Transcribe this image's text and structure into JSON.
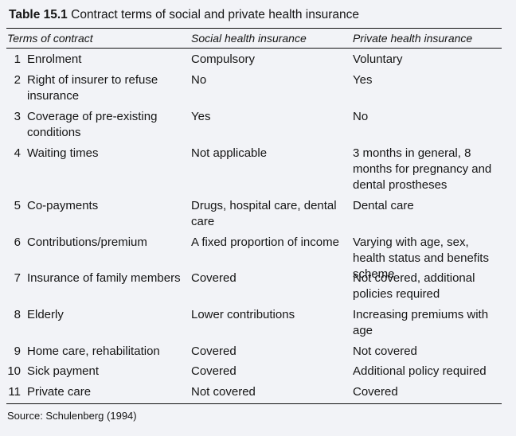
{
  "table": {
    "label": "Table 15.1",
    "title": "Contract terms of social and private health insurance",
    "headers": [
      "Terms of contract",
      "Social health insurance",
      "Private health insurance"
    ],
    "rows": [
      {
        "num": "1",
        "term": "Enrolment",
        "social": "Compulsory",
        "private": "Voluntary"
      },
      {
        "num": "2",
        "term": "Right of insurer to refuse insurance",
        "social": "No",
        "private": "Yes"
      },
      {
        "num": "3",
        "term": "Coverage of pre-existing conditions",
        "social": "Yes",
        "private": "No"
      },
      {
        "num": "4",
        "term": "Waiting times",
        "social": "Not applicable",
        "private": "3 months in general, 8 months for pregnancy and dental prostheses"
      },
      {
        "num": "5",
        "term": "Co-payments",
        "social": "Drugs, hospital care, dental care",
        "private": "Dental care"
      },
      {
        "num": "6",
        "term": "Contributions/premium",
        "social": "A fixed proportion of income",
        "private": "Varying with age, sex, health status and benefits scheme"
      },
      {
        "num": "7",
        "term": "Insurance of family members",
        "social": "Covered",
        "private": "Not covered, additional policies required"
      },
      {
        "num": "8",
        "term": "Elderly",
        "social": "Lower contributions",
        "private": "Increasing premiums with age"
      },
      {
        "num": "9",
        "term": "Home care, rehabilitation",
        "social": "Covered",
        "private": "Not covered"
      },
      {
        "num": "10",
        "term": "Sick payment",
        "social": "Covered",
        "private": "Additional policy required"
      },
      {
        "num": "11",
        "term": "Private care",
        "social": "Not covered",
        "private": "Covered"
      }
    ],
    "source": "Source: Schulenberg (1994)"
  }
}
